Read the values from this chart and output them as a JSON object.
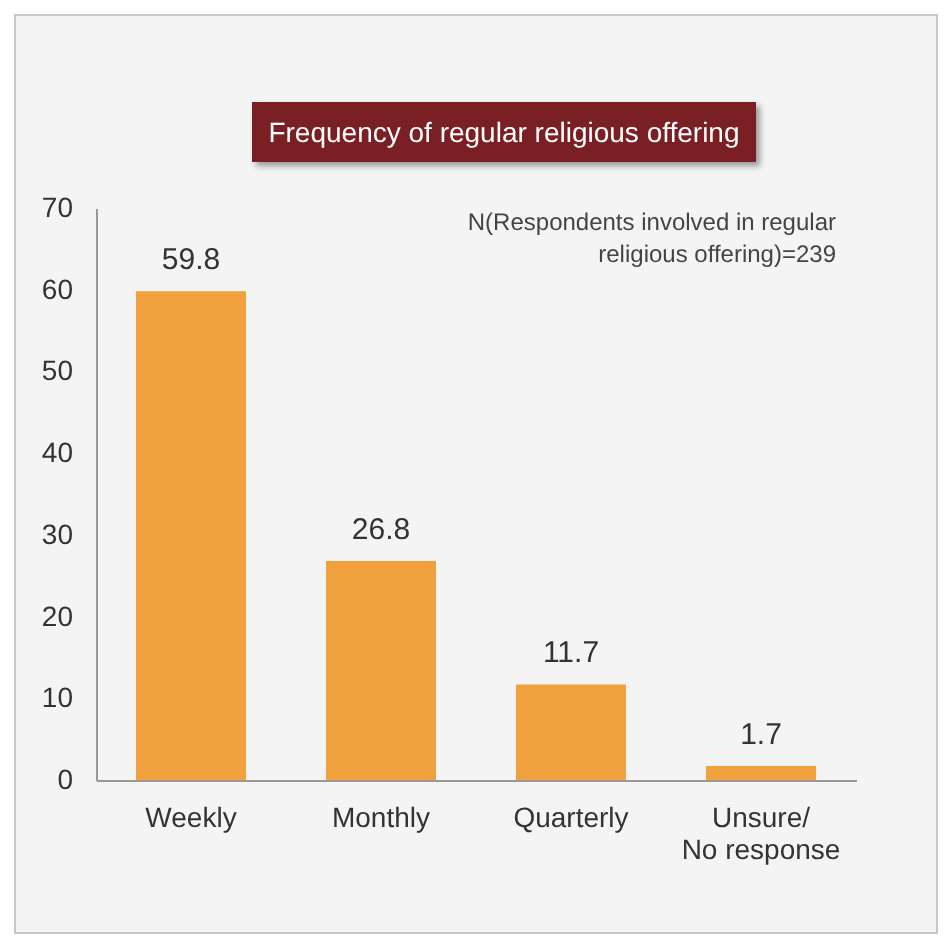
{
  "chart_data": {
    "type": "bar",
    "title": "Frequency of regular religious offering",
    "categories": [
      "Weekly",
      "Monthly",
      "Quarterly",
      "Unsure/ No response"
    ],
    "values": [
      59.8,
      26.8,
      11.7,
      1.7
    ],
    "color": "#f0a03c",
    "ylim": [
      0,
      70
    ],
    "yticks": [
      0,
      10,
      20,
      30,
      40,
      50,
      60,
      70
    ],
    "grid": false,
    "data_labels": true,
    "annotations": [
      "N(Respondents involved in regular religious offering)=239"
    ]
  }
}
